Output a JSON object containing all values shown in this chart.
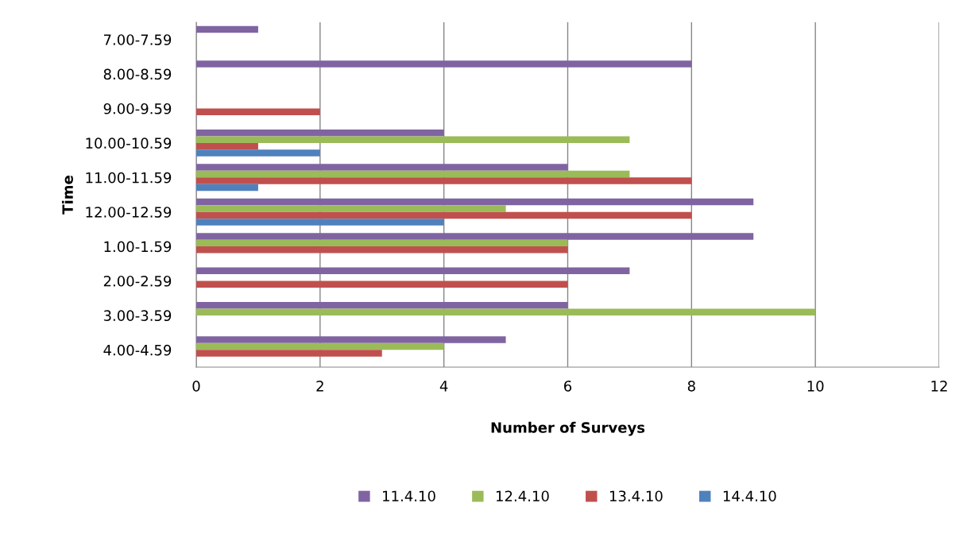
{
  "chart_data": {
    "type": "bar",
    "orientation": "horizontal",
    "xlabel": "Number of Surveys",
    "ylabel": "Time",
    "categories": [
      "7.00-7.59",
      "8.00-8.59",
      "9.00-9.59",
      "10.00-10.59",
      "11.00-11.59",
      "12.00-12.59",
      "1.00-1.59",
      "2.00-2.59",
      "3.00-3.59",
      "4.00-4.59"
    ],
    "series": [
      {
        "name": "11.4.10",
        "color": "#8064a2",
        "values": [
          1,
          8,
          0,
          4,
          6,
          9,
          9,
          7,
          6,
          5
        ]
      },
      {
        "name": "12.4.10",
        "color": "#9bbb59",
        "values": [
          0,
          0,
          0,
          7,
          7,
          5,
          6,
          0,
          10,
          4
        ]
      },
      {
        "name": "13.4.10",
        "color": "#c0504d",
        "values": [
          0,
          0,
          2,
          1,
          8,
          8,
          6,
          6,
          0,
          3
        ]
      },
      {
        "name": "14.4.10",
        "color": "#4f81bd",
        "values": [
          0,
          0,
          0,
          2,
          1,
          4,
          0,
          0,
          0,
          0
        ]
      }
    ],
    "xlim": [
      0,
      12
    ],
    "xticks": [
      0,
      2,
      4,
      6,
      8,
      10,
      12
    ],
    "grid": "x",
    "legend": "bottom"
  }
}
